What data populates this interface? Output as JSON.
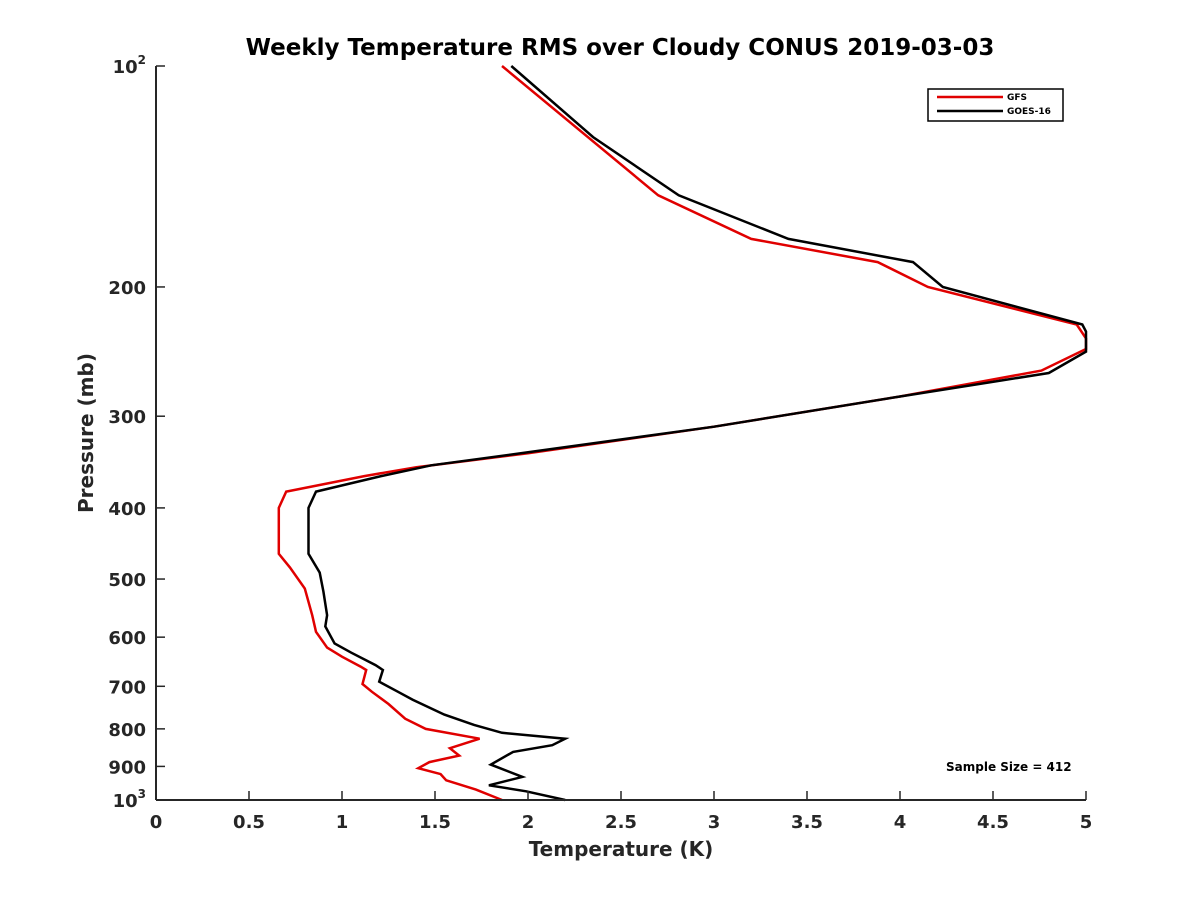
{
  "chart_data": {
    "type": "line",
    "title": "Weekly Temperature RMS over Cloudy CONUS 2019-03-03",
    "xlabel": "Temperature (K)",
    "ylabel": "Pressure (mb)",
    "xlim": [
      0,
      5
    ],
    "ylim": [
      100,
      1000
    ],
    "y_scale": "log",
    "y_reversed": true,
    "grid": false,
    "legend_position": "top-right",
    "x_ticks": [
      {
        "value": 0,
        "label": "0"
      },
      {
        "value": 0.5,
        "label": "0.5"
      },
      {
        "value": 1,
        "label": "1"
      },
      {
        "value": 1.5,
        "label": "1.5"
      },
      {
        "value": 2,
        "label": "2"
      },
      {
        "value": 2.5,
        "label": "2.5"
      },
      {
        "value": 3,
        "label": "3"
      },
      {
        "value": 3.5,
        "label": "3.5"
      },
      {
        "value": 4,
        "label": "4"
      },
      {
        "value": 4.5,
        "label": "4.5"
      },
      {
        "value": 5,
        "label": "5"
      }
    ],
    "y_ticks": [
      {
        "value": 100,
        "base": "10",
        "exp": "2"
      },
      {
        "value": 200,
        "label": "200"
      },
      {
        "value": 300,
        "label": "300"
      },
      {
        "value": 400,
        "label": "400"
      },
      {
        "value": 500,
        "label": "500"
      },
      {
        "value": 600,
        "label": "600"
      },
      {
        "value": 700,
        "label": "700"
      },
      {
        "value": 800,
        "label": "800"
      },
      {
        "value": 900,
        "label": "900"
      },
      {
        "value": 1000,
        "base": "10",
        "exp": "3"
      }
    ],
    "series": [
      {
        "name": "GFS",
        "color": "#e00000",
        "points": [
          [
            1.86,
            100
          ],
          [
            2.7,
            150
          ],
          [
            3.2,
            172
          ],
          [
            3.88,
            185
          ],
          [
            4.15,
            200
          ],
          [
            4.95,
            225
          ],
          [
            5.0,
            235
          ],
          [
            5.0,
            243
          ],
          [
            4.76,
            260
          ],
          [
            4.0,
            282
          ],
          [
            3.0,
            310
          ],
          [
            2.0,
            337
          ],
          [
            1.4,
            352
          ],
          [
            1.12,
            362
          ],
          [
            0.7,
            380
          ],
          [
            0.66,
            400
          ],
          [
            0.66,
            430
          ],
          [
            0.66,
            462
          ],
          [
            0.72,
            482
          ],
          [
            0.8,
            515
          ],
          [
            0.84,
            560
          ],
          [
            0.86,
            590
          ],
          [
            0.92,
            620
          ],
          [
            1.0,
            638
          ],
          [
            1.1,
            658
          ],
          [
            1.13,
            665
          ],
          [
            1.11,
            695
          ],
          [
            1.16,
            712
          ],
          [
            1.25,
            740
          ],
          [
            1.34,
            775
          ],
          [
            1.45,
            800
          ],
          [
            1.74,
            825
          ],
          [
            1.58,
            850
          ],
          [
            1.63,
            870
          ],
          [
            1.47,
            888
          ],
          [
            1.41,
            905
          ],
          [
            1.53,
            922
          ],
          [
            1.56,
            940
          ],
          [
            1.72,
            968
          ],
          [
            1.86,
            1000
          ]
        ]
      },
      {
        "name": "GOES-16",
        "color": "#000000",
        "points": [
          [
            1.91,
            100
          ],
          [
            2.35,
            125
          ],
          [
            2.81,
            150
          ],
          [
            3.4,
            172
          ],
          [
            4.07,
            185
          ],
          [
            4.23,
            200
          ],
          [
            4.98,
            225
          ],
          [
            5.0,
            230
          ],
          [
            5.0,
            245
          ],
          [
            4.8,
            262
          ],
          [
            4.0,
            282
          ],
          [
            3.0,
            310
          ],
          [
            2.0,
            336
          ],
          [
            1.48,
            350
          ],
          [
            1.21,
            362
          ],
          [
            0.86,
            380
          ],
          [
            0.82,
            400
          ],
          [
            0.82,
            430
          ],
          [
            0.82,
            462
          ],
          [
            0.88,
            490
          ],
          [
            0.9,
            520
          ],
          [
            0.92,
            560
          ],
          [
            0.91,
            580
          ],
          [
            0.96,
            612
          ],
          [
            1.05,
            630
          ],
          [
            1.18,
            655
          ],
          [
            1.22,
            665
          ],
          [
            1.2,
            690
          ],
          [
            1.3,
            712
          ],
          [
            1.38,
            730
          ],
          [
            1.55,
            765
          ],
          [
            1.71,
            790
          ],
          [
            1.86,
            810
          ],
          [
            2.2,
            825
          ],
          [
            2.13,
            842
          ],
          [
            1.92,
            860
          ],
          [
            1.8,
            895
          ],
          [
            1.97,
            930
          ],
          [
            1.79,
            955
          ],
          [
            1.99,
            973
          ],
          [
            2.2,
            1000
          ]
        ]
      }
    ],
    "annotations": [
      "Sample Size = 412"
    ]
  }
}
